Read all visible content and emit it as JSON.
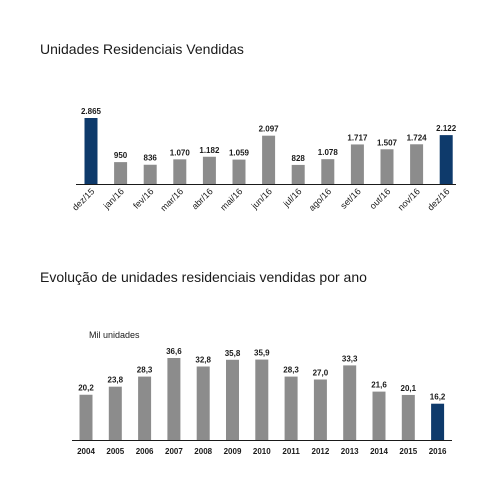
{
  "chart_data": [
    {
      "type": "bar",
      "title": "Unidades Residenciais Vendidas",
      "categories": [
        "dez/15",
        "jan/16",
        "fev/16",
        "mar/16",
        "abr/16",
        "mai/16",
        "jun/16",
        "jul/16",
        "ago/16",
        "set/16",
        "out/16",
        "nov/16",
        "dez/16"
      ],
      "values": [
        2865,
        950,
        836,
        1070,
        1182,
        1059,
        2097,
        828,
        1078,
        1717,
        1507,
        1724,
        2122
      ],
      "value_labels": [
        "2.865",
        "950",
        "836",
        "1.070",
        "1.182",
        "1.059",
        "2.097",
        "828",
        "1.078",
        "1.717",
        "1.507",
        "1.724",
        "2.122"
      ],
      "highlighted": [
        "dez/15",
        "dez/16"
      ],
      "ylim": [
        0,
        2865
      ],
      "grid": false,
      "colors": {
        "default": "#8c8c8c",
        "highlight": "#0e3a6b",
        "axis": "#1a1a1a"
      }
    },
    {
      "type": "bar",
      "title": "Evolução de unidades residenciais vendidas por ano",
      "unit_label": "Mil unidades",
      "categories": [
        "2004",
        "2005",
        "2006",
        "2007",
        "2008",
        "2009",
        "2010",
        "2011",
        "2012",
        "2013",
        "2014",
        "2015",
        "2016"
      ],
      "values": [
        20.2,
        23.8,
        28.3,
        36.6,
        32.8,
        35.8,
        35.9,
        28.3,
        27.0,
        33.3,
        21.6,
        20.1,
        16.2
      ],
      "value_labels": [
        "20,2",
        "23,8",
        "28,3",
        "36,6",
        "32,8",
        "35,8",
        "35,9",
        "28,3",
        "27,0",
        "33,3",
        "21,6",
        "20,1",
        "16,2"
      ],
      "highlighted": [
        "2016"
      ],
      "ylim": [
        0,
        36.6
      ],
      "grid": false,
      "colors": {
        "default": "#8c8c8c",
        "highlight": "#0e3a6b",
        "axis": "#1a1a1a"
      }
    }
  ]
}
